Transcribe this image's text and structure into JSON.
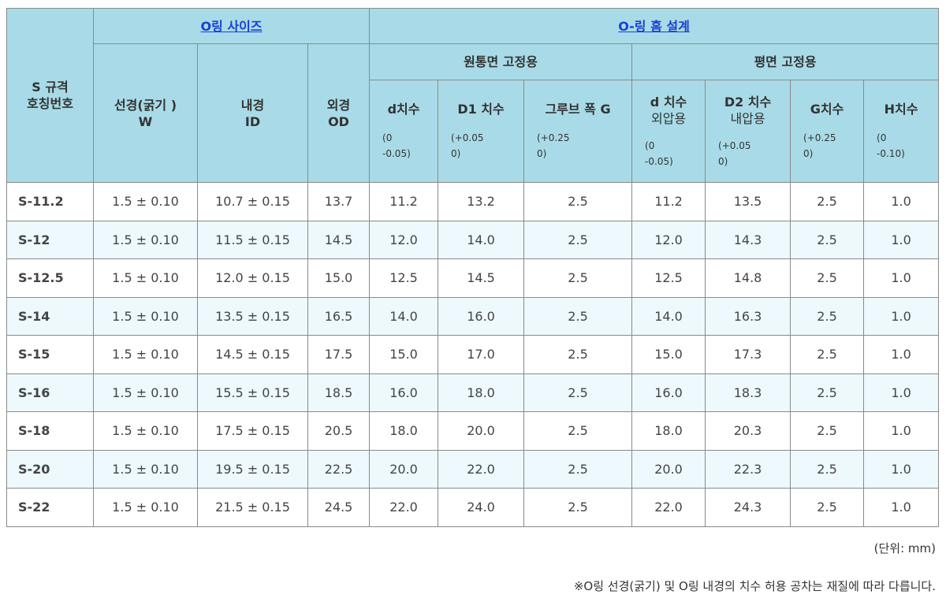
{
  "header": {
    "spec": [
      "S 규격",
      "호칭번호"
    ],
    "oring_group": "O링 사이즈",
    "groove_group": "O-링 홈 설계",
    "cyl_group": "원통면 고정용",
    "flat_group": "평면 고정용",
    "w": [
      "선경(굵기 )",
      "W"
    ],
    "id": [
      "내경",
      "ID"
    ],
    "od": [
      "외경",
      "OD"
    ],
    "d_cyl": {
      "title": "d치수",
      "tol": [
        "(0",
        "-0.05)"
      ]
    },
    "d1": {
      "title": "D1 치수",
      "tol": [
        "(+0.05",
        "0)"
      ]
    },
    "groove_g": {
      "title": "그루브 폭 G",
      "tol": [
        "(+0.25",
        "0)"
      ]
    },
    "d_flat": {
      "title": "d 치수",
      "sub": "외압용",
      "tol": [
        "(0",
        "-0.05)"
      ]
    },
    "d2": {
      "title": "D2 치수",
      "sub": "내압용",
      "tol": [
        "(+0.05",
        "0)"
      ]
    },
    "g": {
      "title": "G치수",
      "tol": [
        "(+0.25",
        "0)"
      ]
    },
    "h": {
      "title": "H치수",
      "tol": [
        "(0",
        "-0.10)"
      ]
    }
  },
  "rows": [
    [
      "S-11.2",
      "1.5 ± 0.10",
      "10.7 ± 0.15",
      "13.7",
      "11.2",
      "13.2",
      "2.5",
      "11.2",
      "13.5",
      "2.5",
      "1.0"
    ],
    [
      "S-12",
      "1.5 ± 0.10",
      "11.5 ± 0.15",
      "14.5",
      "12.0",
      "14.0",
      "2.5",
      "12.0",
      "14.3",
      "2.5",
      "1.0"
    ],
    [
      "S-12.5",
      "1.5 ± 0.10",
      "12.0 ± 0.15",
      "15.0",
      "12.5",
      "14.5",
      "2.5",
      "12.5",
      "14.8",
      "2.5",
      "1.0"
    ],
    [
      "S-14",
      "1.5 ± 0.10",
      "13.5 ± 0.15",
      "16.5",
      "14.0",
      "16.0",
      "2.5",
      "14.0",
      "16.3",
      "2.5",
      "1.0"
    ],
    [
      "S-15",
      "1.5 ± 0.10",
      "14.5 ± 0.15",
      "17.5",
      "15.0",
      "17.0",
      "2.5",
      "15.0",
      "17.3",
      "2.5",
      "1.0"
    ],
    [
      "S-16",
      "1.5 ± 0.10",
      "15.5 ± 0.15",
      "18.5",
      "16.0",
      "18.0",
      "2.5",
      "16.0",
      "18.3",
      "2.5",
      "1.0"
    ],
    [
      "S-18",
      "1.5 ± 0.10",
      "17.5 ± 0.15",
      "20.5",
      "18.0",
      "20.0",
      "2.5",
      "18.0",
      "20.3",
      "2.5",
      "1.0"
    ],
    [
      "S-20",
      "1.5 ± 0.10",
      "19.5 ± 0.15",
      "22.5",
      "20.0",
      "22.0",
      "2.5",
      "20.0",
      "22.3",
      "2.5",
      "1.0"
    ],
    [
      "S-22",
      "1.5 ± 0.10",
      "21.5 ± 0.15",
      "24.5",
      "22.0",
      "24.0",
      "2.5",
      "22.0",
      "24.3",
      "2.5",
      "1.0"
    ]
  ],
  "footer": {
    "unit": "(단위: mm)",
    "note": "※O링 선경(굵기) 및 O링 내경의 치수 허용 공차는 재질에 따라 다릅니다."
  },
  "colors": {
    "header_bg": "#a8dbe7",
    "alt_row_bg": "#edf9fd",
    "link": "#1a3fd6"
  }
}
